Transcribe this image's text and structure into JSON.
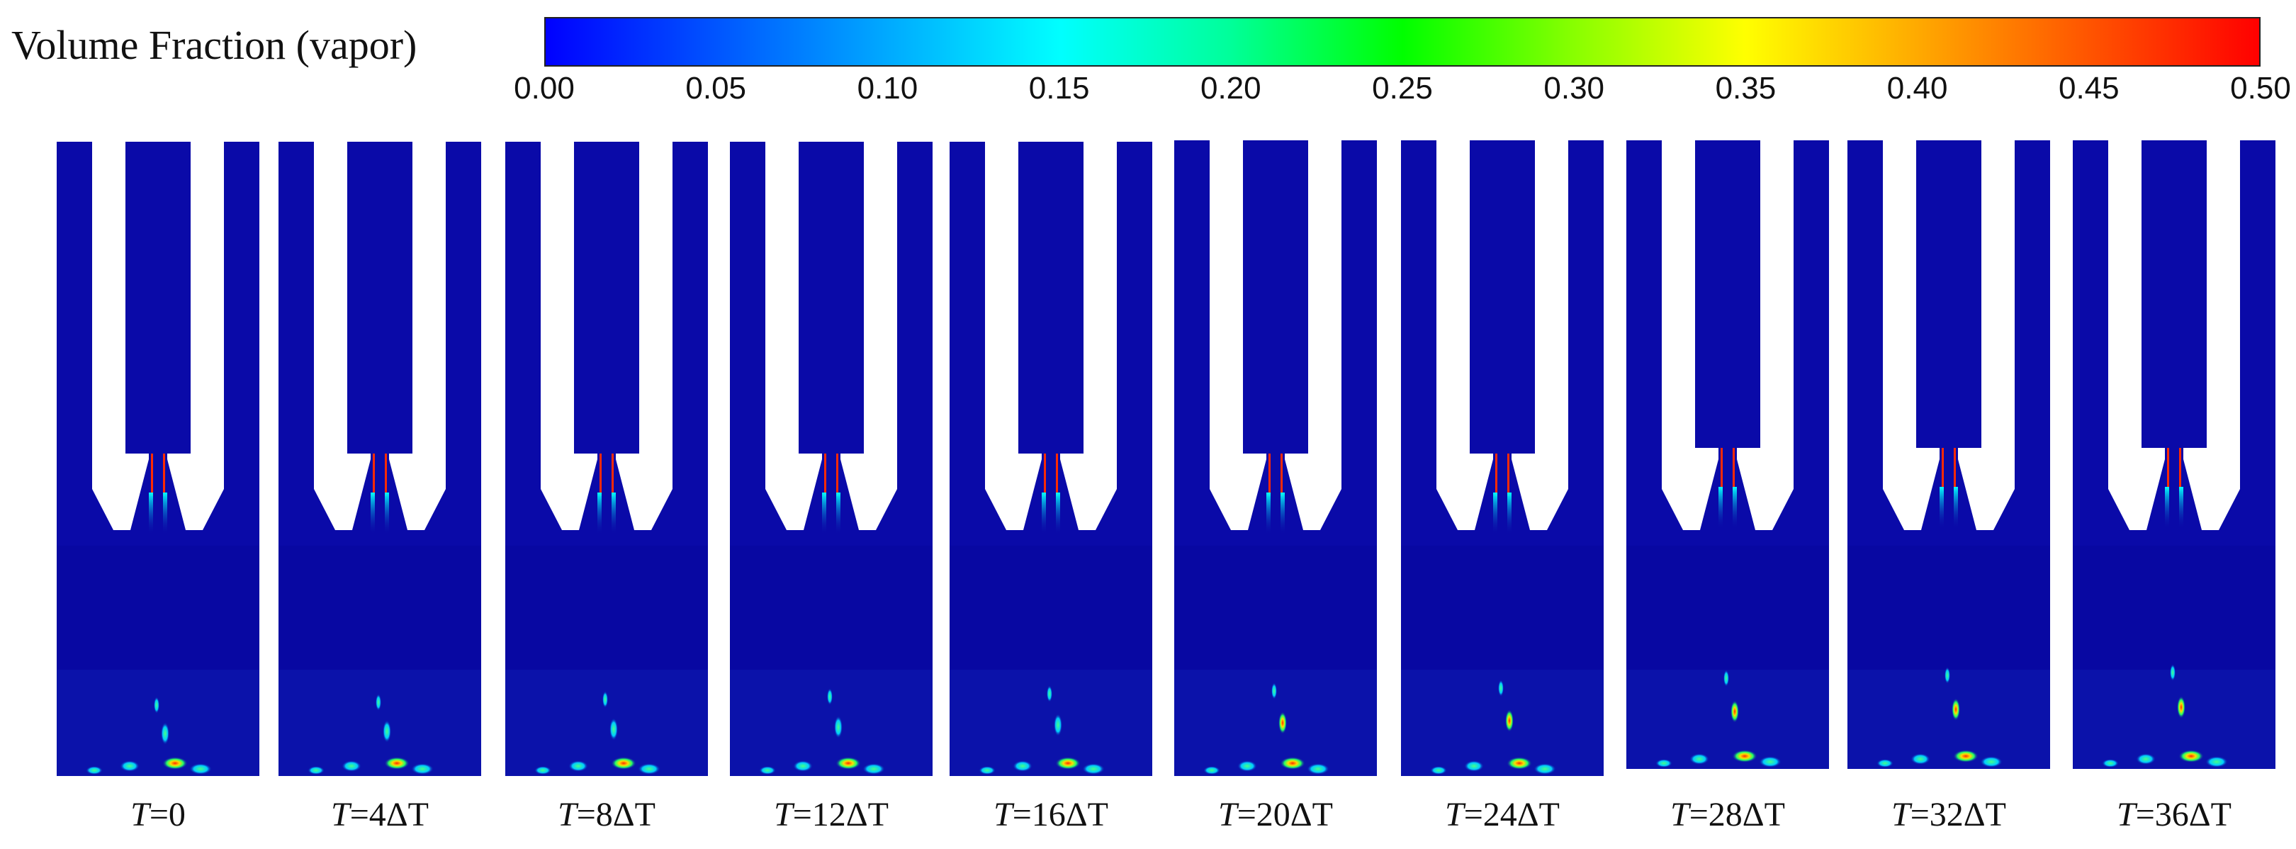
{
  "colorbar": {
    "title": "Volume Fraction (vapor)",
    "ticks": [
      "0.00",
      "0.05",
      "0.10",
      "0.15",
      "0.20",
      "0.25",
      "0.30",
      "0.35",
      "0.40",
      "0.45",
      "0.50"
    ],
    "range": [
      0.0,
      0.5
    ]
  },
  "colors": {
    "fluid": "#0a0aa8",
    "mixing_zone": "#0808a2",
    "lower_zone": "#0b12aa",
    "solid": "#ffffff"
  },
  "panels": [
    {
      "var": "T",
      "suffix": "=0"
    },
    {
      "var": "T",
      "suffix": "=4ΔT"
    },
    {
      "var": "T",
      "suffix": "=8ΔT"
    },
    {
      "var": "T",
      "suffix": "=12ΔT"
    },
    {
      "var": "T",
      "suffix": "=16ΔT"
    },
    {
      "var": "T",
      "suffix": "=20ΔT"
    },
    {
      "var": "T",
      "suffix": "=24ΔT"
    },
    {
      "var": "T",
      "suffix": "=28ΔT"
    },
    {
      "var": "T",
      "suffix": "=32ΔT"
    },
    {
      "var": "T",
      "suffix": "=36ΔT"
    }
  ]
}
